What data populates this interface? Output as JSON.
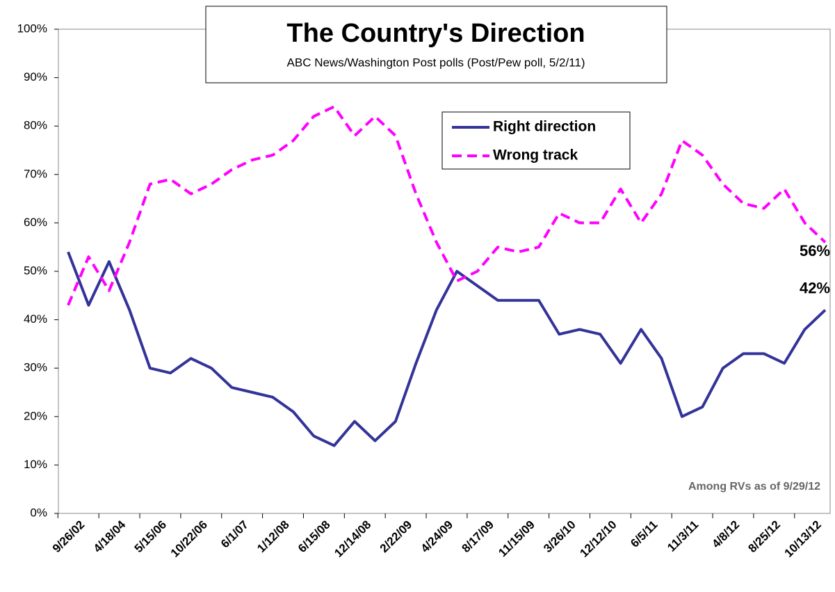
{
  "chart_data": {
    "type": "line",
    "title": "The Country's Direction",
    "subtitle": "ABC News/Washington  Post polls (Post/Pew poll, 5/2/11)",
    "categories": [
      null,
      "9/26/02",
      null,
      "4/18/04",
      null,
      "5/15/06",
      null,
      "10/22/06",
      null,
      "6/1/07",
      null,
      "1/12/08",
      null,
      "6/15/08",
      null,
      "12/14/08",
      null,
      "2/22/09",
      null,
      "4/24/09",
      null,
      "8/17/09",
      null,
      "11/15/09",
      null,
      "3/26/10",
      null,
      "12/12/10",
      null,
      "6/5/11",
      null,
      "11/3/11",
      null,
      "4/8/12",
      null,
      "8/25/12",
      null,
      "10/13/12"
    ],
    "series": [
      {
        "name": "Right direction",
        "color": "#333399",
        "dash": false,
        "values": [
          54,
          43,
          52,
          42,
          30,
          29,
          32,
          30,
          26,
          25,
          24,
          21,
          16,
          14,
          19,
          15,
          19,
          31,
          42,
          50,
          47,
          44,
          44,
          44,
          37,
          38,
          37,
          31,
          38,
          32,
          20,
          22,
          30,
          33,
          33,
          31,
          38,
          42
        ]
      },
      {
        "name": "Wrong track",
        "color": "#ff00ff",
        "dash": true,
        "values": [
          43,
          53,
          46,
          56,
          68,
          69,
          66,
          68,
          71,
          73,
          74,
          77,
          82,
          84,
          78,
          82,
          78,
          66,
          56,
          48,
          50,
          55,
          54,
          55,
          62,
          60,
          60,
          67,
          60,
          66,
          77,
          74,
          68,
          64,
          63,
          67,
          60,
          56
        ]
      }
    ],
    "ylim": [
      0,
      100
    ],
    "yticks": [
      {
        "value": 0,
        "label": "0%"
      },
      {
        "value": 10,
        "label": "10%"
      },
      {
        "value": 20,
        "label": "20%"
      },
      {
        "value": 30,
        "label": "30%"
      },
      {
        "value": 40,
        "label": "40%"
      },
      {
        "value": 50,
        "label": "50%"
      },
      {
        "value": 60,
        "label": "60%"
      },
      {
        "value": 70,
        "label": "70%"
      },
      {
        "value": 80,
        "label": "80%"
      },
      {
        "value": 90,
        "label": "90%"
      },
      {
        "value": 100,
        "label": "100%"
      }
    ],
    "end_labels": [
      "42%",
      "56%"
    ],
    "note": "Among RVs as of 9/29/12"
  }
}
